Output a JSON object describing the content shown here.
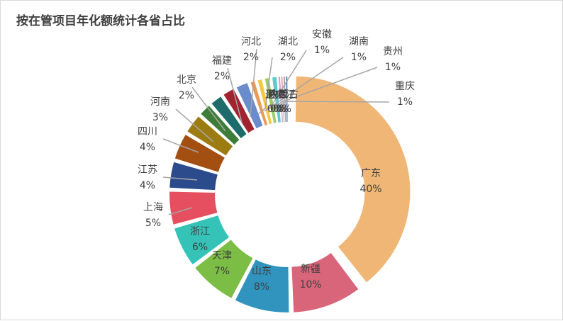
{
  "chart_data": {
    "type": "donut",
    "title": "按在管项目年化额统计各省占比",
    "categories": [
      "广东",
      "新疆",
      "山东",
      "天津",
      "浙江",
      "上海",
      "江苏",
      "四川",
      "河南",
      "北京",
      "福建",
      "河北",
      "湖北",
      "安徽",
      "湖南",
      "贵州",
      "重庆",
      "辽宁",
      "陕西",
      "黑龙江",
      "内蒙古"
    ],
    "values": [
      40,
      10,
      8,
      7,
      6,
      5,
      4,
      4,
      3,
      2,
      2,
      2,
      2,
      1,
      1,
      1,
      1,
      0,
      0,
      0,
      0
    ],
    "value_labels": [
      "40%",
      "10%",
      "8%",
      "7%",
      "6%",
      "5%",
      "4%",
      "4%",
      "3%",
      "2%",
      "2%",
      "2%",
      "2%",
      "1%",
      "1%",
      "1%",
      "1%",
      "0%",
      "0%",
      "0%",
      "0%"
    ],
    "colors": [
      "#F0B676",
      "#D9657A",
      "#3194BF",
      "#7CBD45",
      "#35C3B8",
      "#E54F5F",
      "#2B4B8C",
      "#A34F12",
      "#9C7B11",
      "#3E7D39",
      "#1E6B6B",
      "#A0232F",
      "#6A8CCB",
      "#E89A5A",
      "#F5C843",
      "#9ACD62",
      "#5CCBD0",
      "#C8A0D0",
      "#E9A2B4",
      "#A6A6A6",
      "#4F81BD"
    ],
    "legend": "none",
    "grid": false
  }
}
